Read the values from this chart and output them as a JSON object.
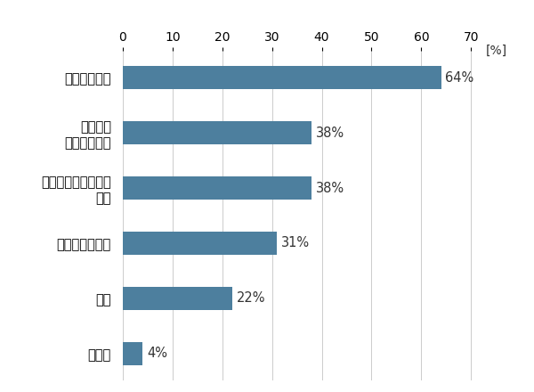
{
  "categories": [
    "時間管理能力",
    "マメさ・\nきめ細やかさ",
    "コミュニケーション\n能力",
    "専門的なスキル",
    "人脈",
    "その他"
  ],
  "values": [
    64,
    38,
    38,
    31,
    22,
    4
  ],
  "labels": [
    "64%",
    "38%",
    "38%",
    "31%",
    "22%",
    "4%"
  ],
  "bar_color": "#4d7f9e",
  "background_color": "#ffffff",
  "xlim_max": 73,
  "xticks": [
    0,
    10,
    20,
    30,
    40,
    50,
    60,
    70
  ],
  "xlabel_unit": "[%]",
  "bar_height": 0.42,
  "label_fontsize": 10.5,
  "tick_fontsize": 10,
  "unit_fontsize": 10,
  "text_color": "#333333"
}
